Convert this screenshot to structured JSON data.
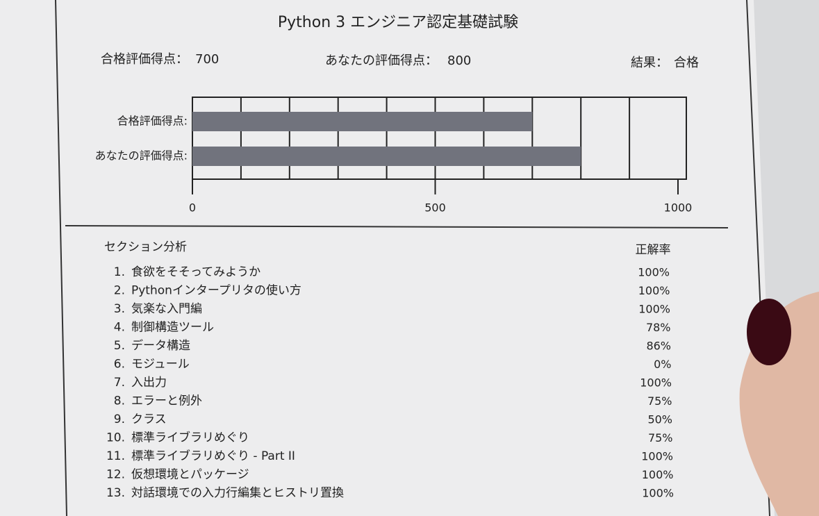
{
  "header": {
    "title": "Python 3 エンジニア認定基礎試験"
  },
  "summary": {
    "passing_label": "合格評価得点：",
    "passing_score": "700",
    "your_label": "あなたの評価得点：",
    "your_score": "800",
    "result_label": "結果：",
    "result": "合格"
  },
  "chart_data": {
    "type": "bar",
    "orientation": "horizontal",
    "categories": [
      "合格評価得点:",
      "あなたの評価得点:"
    ],
    "values": [
      700,
      800
    ],
    "color": "#71737d",
    "xlim": [
      0,
      1000
    ],
    "xticks": [
      0,
      500,
      1000
    ],
    "xgrid": [
      100,
      200,
      300,
      400,
      500,
      600,
      700,
      800,
      900
    ]
  },
  "sections": {
    "title": "セクション分析",
    "rate_header": "正解率",
    "rows": [
      {
        "number": "1.",
        "name": "食欲をそそってみようか",
        "rate": "100%"
      },
      {
        "number": "2.",
        "name": "Pythonインタープリタの使い方",
        "rate": "100%"
      },
      {
        "number": "3.",
        "name": "気楽な入門編",
        "rate": "100%"
      },
      {
        "number": "4.",
        "name": "制御構造ツール",
        "rate": "78%"
      },
      {
        "number": "5.",
        "name": "データ構造",
        "rate": "86%"
      },
      {
        "number": "6.",
        "name": "モジュール",
        "rate": "0%"
      },
      {
        "number": "7.",
        "name": "入出力",
        "rate": "100%"
      },
      {
        "number": "8.",
        "name": "エラーと例外",
        "rate": "75%"
      },
      {
        "number": "9.",
        "name": "クラス",
        "rate": "50%"
      },
      {
        "number": "10.",
        "name": "標準ライブラリめぐり",
        "rate": "75%"
      },
      {
        "number": "11.",
        "name": "標準ライブラリめぐり - Part II",
        "rate": "100%"
      },
      {
        "number": "12.",
        "name": "仮想環境とパッケージ",
        "rate": "100%"
      },
      {
        "number": "13.",
        "name": "対話環境での入力行編集とヒストリ置換",
        "rate": "100%"
      }
    ]
  }
}
